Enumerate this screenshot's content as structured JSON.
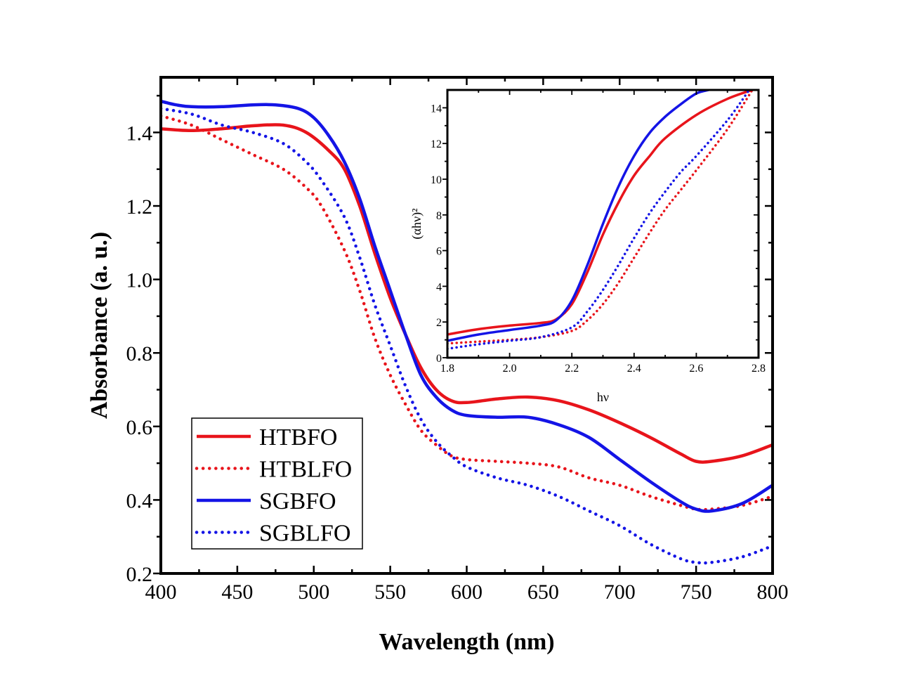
{
  "chart_data": [
    {
      "type": "line",
      "xlabel": "Wavelength (nm)",
      "ylabel": "Absorbance (a. u.)",
      "xlim": [
        400,
        800
      ],
      "ylim": [
        0.2,
        1.55
      ],
      "xticks": [
        "400",
        "450",
        "500",
        "550",
        "600",
        "650",
        "700",
        "750",
        "800"
      ],
      "yticks": [
        "0.2",
        "0.4",
        "0.6",
        "0.8",
        "1.0",
        "1.2",
        "1.4"
      ],
      "legend_position": "bottom-left",
      "grid": false,
      "series": [
        {
          "name": "HTBFO",
          "color": "#e8141b",
          "style": "solid",
          "x": [
            400,
            420,
            440,
            460,
            480,
            495,
            510,
            520,
            530,
            540,
            550,
            560,
            570,
            580,
            590,
            600,
            620,
            640,
            660,
            680,
            700,
            720,
            740,
            750,
            760,
            780,
            800
          ],
          "y": [
            1.41,
            1.405,
            1.41,
            1.418,
            1.42,
            1.4,
            1.35,
            1.3,
            1.2,
            1.07,
            0.95,
            0.85,
            0.76,
            0.7,
            0.67,
            0.665,
            0.675,
            0.68,
            0.67,
            0.645,
            0.61,
            0.57,
            0.525,
            0.505,
            0.505,
            0.52,
            0.55
          ]
        },
        {
          "name": "HTBLFO",
          "color": "#e8141b",
          "style": "dotted",
          "x": [
            400,
            420,
            440,
            460,
            480,
            495,
            505,
            520,
            530,
            540,
            550,
            560,
            570,
            580,
            590,
            600,
            620,
            640,
            660,
            680,
            700,
            720,
            740,
            750,
            760,
            780,
            800
          ],
          "y": [
            1.445,
            1.42,
            1.38,
            1.34,
            1.3,
            1.25,
            1.2,
            1.08,
            0.97,
            0.84,
            0.74,
            0.66,
            0.59,
            0.55,
            0.52,
            0.51,
            0.505,
            0.5,
            0.49,
            0.46,
            0.44,
            0.41,
            0.385,
            0.375,
            0.375,
            0.385,
            0.41
          ]
        },
        {
          "name": "SGBFO",
          "color": "#1414e6",
          "style": "solid",
          "x": [
            400,
            410,
            420,
            440,
            460,
            475,
            490,
            500,
            510,
            520,
            530,
            540,
            550,
            560,
            570,
            580,
            590,
            600,
            620,
            640,
            660,
            680,
            700,
            720,
            740,
            750,
            760,
            780,
            800
          ],
          "y": [
            1.485,
            1.475,
            1.47,
            1.47,
            1.475,
            1.475,
            1.465,
            1.44,
            1.39,
            1.32,
            1.22,
            1.09,
            0.97,
            0.85,
            0.74,
            0.68,
            0.645,
            0.63,
            0.625,
            0.625,
            0.605,
            0.57,
            0.51,
            0.45,
            0.395,
            0.375,
            0.37,
            0.39,
            0.44
          ]
        },
        {
          "name": "SGBLFO",
          "color": "#1414e6",
          "style": "dotted",
          "x": [
            400,
            420,
            440,
            460,
            480,
            495,
            505,
            520,
            530,
            540,
            550,
            560,
            570,
            580,
            590,
            600,
            620,
            640,
            660,
            680,
            700,
            720,
            740,
            750,
            760,
            780,
            800
          ],
          "y": [
            1.465,
            1.45,
            1.42,
            1.4,
            1.37,
            1.32,
            1.27,
            1.17,
            1.06,
            0.93,
            0.82,
            0.71,
            0.62,
            0.56,
            0.52,
            0.49,
            0.46,
            0.44,
            0.41,
            0.37,
            0.33,
            0.28,
            0.24,
            0.23,
            0.23,
            0.245,
            0.275
          ]
        }
      ]
    },
    {
      "type": "line",
      "inset": true,
      "xlabel": "hν",
      "ylabel": "(αhν)²",
      "xlim": [
        1.8,
        2.8
      ],
      "ylim": [
        0,
        15
      ],
      "xticks": [
        "1.8",
        "2.0",
        "2.2",
        "2.4",
        "2.6",
        "2.8"
      ],
      "yticks": [
        "0",
        "2",
        "4",
        "6",
        "8",
        "10",
        "12",
        "14"
      ],
      "grid": false,
      "series": [
        {
          "name": "HTBFO",
          "color": "#e8141b",
          "style": "solid",
          "x": [
            1.8,
            1.9,
            2.0,
            2.1,
            2.15,
            2.2,
            2.25,
            2.3,
            2.35,
            2.4,
            2.45,
            2.5,
            2.6,
            2.7,
            2.78
          ],
          "y": [
            1.3,
            1.6,
            1.8,
            1.95,
            2.15,
            3.0,
            4.8,
            6.9,
            8.7,
            10.2,
            11.3,
            12.3,
            13.6,
            14.5,
            15.0
          ]
        },
        {
          "name": "HTBLFO",
          "color": "#e8141b",
          "style": "dotted",
          "x": [
            1.8,
            1.9,
            2.0,
            2.1,
            2.2,
            2.25,
            2.3,
            2.35,
            2.4,
            2.45,
            2.5,
            2.55,
            2.6,
            2.7,
            2.78
          ],
          "y": [
            0.8,
            0.9,
            1.0,
            1.15,
            1.5,
            2.1,
            3.0,
            4.2,
            5.6,
            7.0,
            8.3,
            9.4,
            10.5,
            12.8,
            15.0
          ]
        },
        {
          "name": "SGBFO",
          "color": "#1414e6",
          "style": "solid",
          "x": [
            1.8,
            1.9,
            2.0,
            2.1,
            2.15,
            2.2,
            2.25,
            2.3,
            2.35,
            2.4,
            2.45,
            2.5,
            2.55,
            2.6,
            2.64
          ],
          "y": [
            0.95,
            1.3,
            1.55,
            1.8,
            2.1,
            3.2,
            5.2,
            7.5,
            9.6,
            11.3,
            12.6,
            13.5,
            14.2,
            14.8,
            15.0
          ]
        },
        {
          "name": "SGBLFO",
          "color": "#1414e6",
          "style": "dotted",
          "x": [
            1.8,
            1.9,
            2.0,
            2.1,
            2.2,
            2.25,
            2.3,
            2.35,
            2.4,
            2.45,
            2.5,
            2.55,
            2.6,
            2.7,
            2.77
          ],
          "y": [
            0.5,
            0.75,
            0.95,
            1.15,
            1.7,
            2.6,
            3.8,
            5.2,
            6.7,
            8.1,
            9.3,
            10.4,
            11.3,
            13.3,
            15.0
          ]
        }
      ]
    }
  ]
}
